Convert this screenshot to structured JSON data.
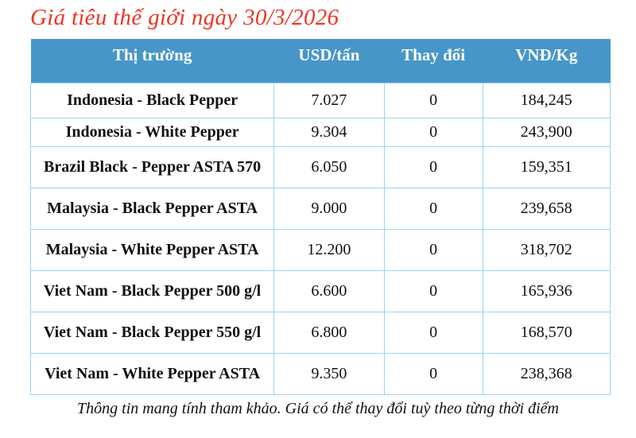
{
  "title": "Giá tiêu thế giới ngày 30/3/2026",
  "table": {
    "columns": [
      "Thị trường",
      "USD/tấn",
      "Thay đổi",
      "VNĐ/Kg"
    ],
    "rows": [
      {
        "market": "Indonesia - Black Pepper",
        "usd": "7.027",
        "change": "0",
        "vnd": "184,245"
      },
      {
        "market": "Indonesia - White Pepper",
        "usd": "9.304",
        "change": "0",
        "vnd": "243,900"
      },
      {
        "market": "Brazil Black - Pepper ASTA 570",
        "usd": "6.050",
        "change": "0",
        "vnd": "159,351"
      },
      {
        "market": "Malaysia - Black Pepper ASTA",
        "usd": "9.000",
        "change": "0",
        "vnd": "239,658"
      },
      {
        "market": "Malaysia - White Pepper ASTA",
        "usd": "12.200",
        "change": "0",
        "vnd": "318,702"
      },
      {
        "market": "Viet Nam - Black Pepper 500 g/l",
        "usd": "6.600",
        "change": "0",
        "vnd": "165,936"
      },
      {
        "market": "Viet Nam - Black Pepper 550 g/l",
        "usd": "6.800",
        "change": "0",
        "vnd": "168,570"
      },
      {
        "market": "Viet Nam - White Pepper ASTA",
        "usd": "9.350",
        "change": "0",
        "vnd": "238,368"
      }
    ]
  },
  "footer_note": "Thông tin mang tính tham khảo. Giá có thể thay đổi tuỳ theo từng thời điểm",
  "colors": {
    "title_red": "#ee3524",
    "header_blue": "#4796c8",
    "row_blue": "#cfe8f6",
    "border_blue": "#9bd4ef",
    "change_blue": "#4472c4"
  }
}
